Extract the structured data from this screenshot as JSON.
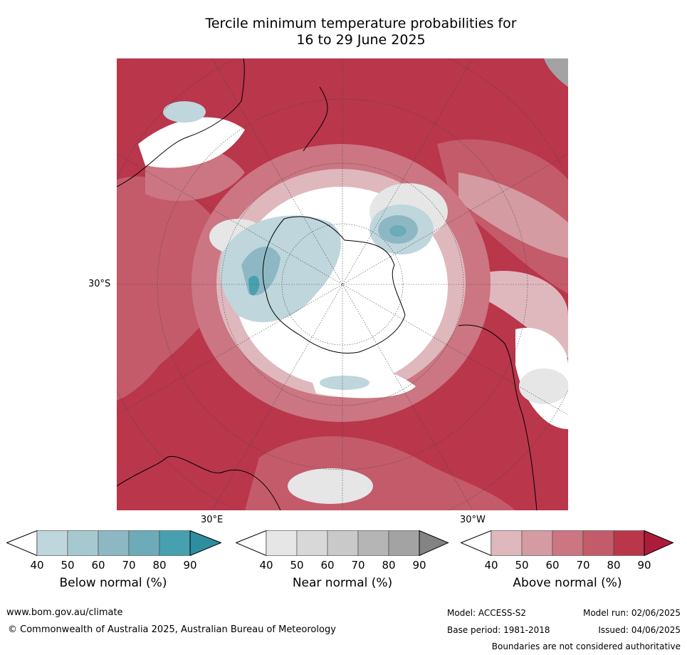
{
  "title": {
    "line1": "Tercile minimum temperature probabilities for",
    "line2": "16 to 29 June 2025"
  },
  "map": {
    "projection_labels": {
      "lat_label": "30°S",
      "lon_label_east": "30°E",
      "lon_label_west": "30°W"
    },
    "colors": {
      "above": [
        "#dfb8bd",
        "#d49ba2",
        "#cb7682",
        "#c45b6a",
        "#b9364b",
        "#ac1c3a"
      ],
      "near": [
        "#e6e6e6",
        "#d8d8d8",
        "#c9c9c9",
        "#b5b5b5",
        "#a3a3a3",
        "#838383"
      ],
      "below": [
        "#bed6dc",
        "#a6c9d0",
        "#8db8c3",
        "#6cabb7",
        "#47a0b0",
        "#2e8d9f"
      ]
    }
  },
  "colorbars": [
    {
      "name": "below",
      "label": "Below normal (%)",
      "ticks": [
        "40",
        "50",
        "60",
        "70",
        "80",
        "90"
      ],
      "colors": [
        "#bed6dc",
        "#a6c9d0",
        "#8db8c3",
        "#6cabb7",
        "#47a0b0",
        "#2e8d9f"
      ]
    },
    {
      "name": "near",
      "label": "Near normal (%)",
      "ticks": [
        "40",
        "50",
        "60",
        "70",
        "80",
        "90"
      ],
      "colors": [
        "#e6e6e6",
        "#d8d8d8",
        "#c9c9c9",
        "#b5b5b5",
        "#a3a3a3",
        "#838383"
      ]
    },
    {
      "name": "above",
      "label": "Above normal (%)",
      "ticks": [
        "40",
        "50",
        "60",
        "70",
        "80",
        "90"
      ],
      "colors": [
        "#dfb8bd",
        "#d49ba2",
        "#cb7682",
        "#c45b6a",
        "#b9364b",
        "#ac1c3a"
      ]
    }
  ],
  "footer": {
    "url": "www.bom.gov.au/climate",
    "copyright": "© Commonwealth of Australia 2025, Australian Bureau of Meteorology",
    "model": "Model: ACCESS-S2",
    "model_run": "Model run: 02/06/2025",
    "base_period": "Base period: 1981-2018",
    "issued": "Issued: 04/06/2025",
    "disclaimer": "Boundaries are not considered authoritative"
  }
}
